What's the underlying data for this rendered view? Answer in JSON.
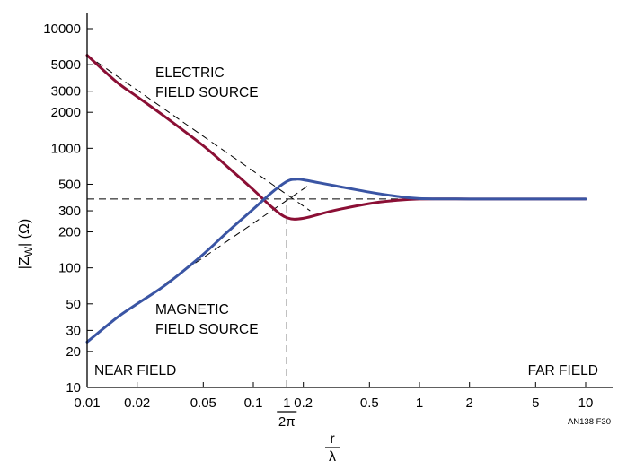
{
  "chart_data": {
    "type": "line",
    "x_scale": "log",
    "y_scale": "log",
    "xlim": [
      0.01,
      10
    ],
    "ylim": [
      10,
      10000
    ],
    "x_ticks": [
      0.01,
      0.02,
      0.05,
      0.1,
      0.2,
      0.5,
      1,
      2,
      5,
      10
    ],
    "x_tick_labels": [
      "0.01",
      "0.02",
      "0.05",
      "0.1",
      "0.2",
      "0.5",
      "1",
      "2",
      "5",
      "10"
    ],
    "y_ticks": [
      10,
      20,
      30,
      50,
      100,
      200,
      300,
      500,
      1000,
      2000,
      3000,
      5000,
      10000
    ],
    "y_tick_labels": [
      "10",
      "20",
      "30",
      "50",
      "100",
      "200",
      "300",
      "500",
      "1000",
      "2000",
      "3000",
      "5000",
      "10000"
    ],
    "ylabel": {
      "pre": "|Z",
      "sub": "W",
      "post": "| (Ω)"
    },
    "xlabel": {
      "numerator": "r",
      "denominator": "λ"
    },
    "special_tick": {
      "x": 0.159,
      "numerator": "1",
      "denominator": "2π"
    },
    "grid": false,
    "series": [
      {
        "color": "#8b0f35",
        "x": [
          0.01,
          0.015,
          0.02,
          0.03,
          0.05,
          0.07,
          0.1,
          0.13,
          0.16,
          0.2,
          0.3,
          0.5,
          0.7,
          1,
          2,
          5,
          10
        ],
        "y": [
          6000,
          3600,
          2700,
          1800,
          1050,
          700,
          450,
          320,
          262,
          260,
          300,
          345,
          365,
          377,
          377,
          377,
          377
        ]
      },
      {
        "color": "#3a55a4",
        "x": [
          0.01,
          0.015,
          0.02,
          0.03,
          0.05,
          0.07,
          0.1,
          0.13,
          0.16,
          0.18,
          0.2,
          0.3,
          0.5,
          0.7,
          1,
          2,
          5,
          10
        ],
        "y": [
          24,
          38,
          50,
          73,
          130,
          200,
          310,
          430,
          530,
          550,
          545,
          490,
          430,
          400,
          380,
          377,
          377,
          377
        ]
      }
    ],
    "asymptotes": [
      {
        "from": [
          0.01,
          6000
        ],
        "to": [
          0.22,
          300
        ]
      },
      {
        "from": [
          0.03,
          75
        ],
        "to": [
          0.22,
          500
        ]
      },
      {
        "from": [
          0.01,
          377
        ],
        "to": [
          10,
          377
        ]
      },
      {
        "from": [
          0.159,
          10
        ],
        "to": [
          0.159,
          377
        ]
      }
    ],
    "annotations": [
      {
        "id": "electric",
        "lines": [
          "ELECTRIC",
          "FIELD SOURCE"
        ]
      },
      {
        "id": "magnetic",
        "lines": [
          "MAGNETIC",
          "FIELD SOURCE"
        ]
      },
      {
        "id": "near",
        "lines": [
          "NEAR FIELD"
        ]
      },
      {
        "id": "far",
        "lines": [
          "FAR FIELD"
        ]
      }
    ],
    "note": "AN138 F30"
  }
}
